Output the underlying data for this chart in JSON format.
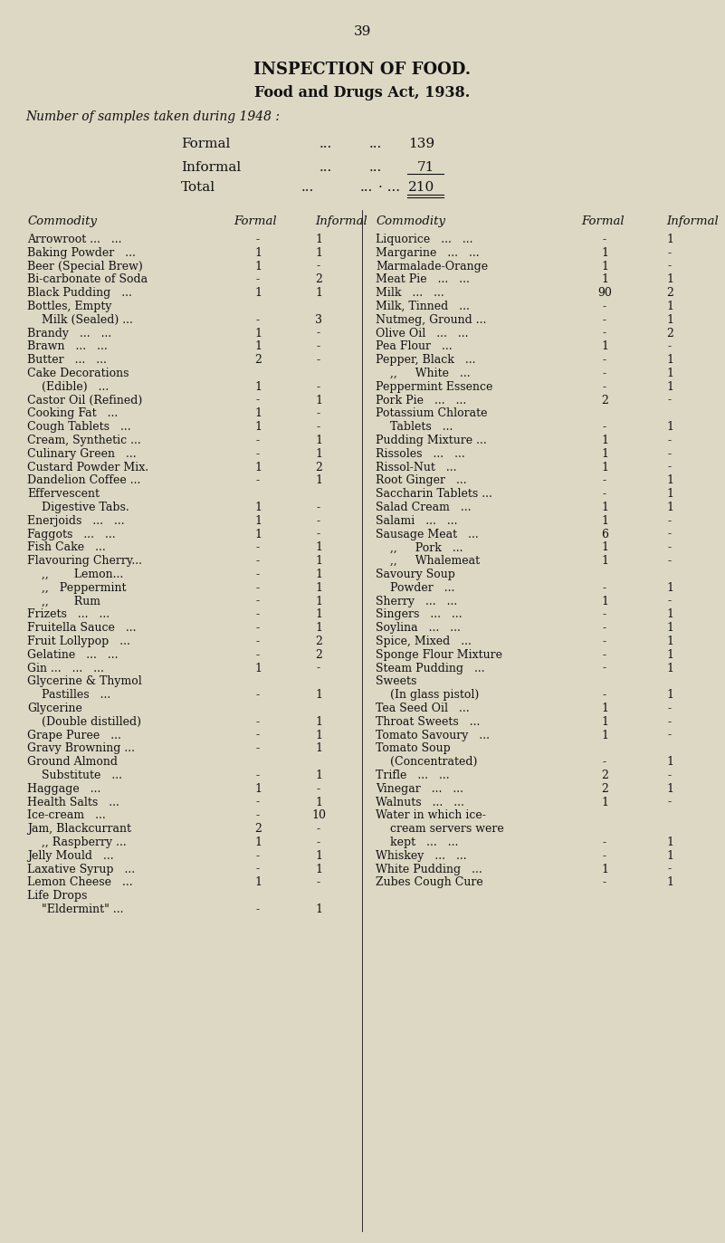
{
  "page_number": "39",
  "title1": "INSPECTION OF FOOD.",
  "title2": "Food and Drugs Act, 1938.",
  "subtitle": "Number of samples taken during 1948 :",
  "formal_label": "Formal",
  "informal_label": "Informal",
  "total_label": "Total",
  "formal_count": "139",
  "informal_count": "71",
  "total_count": "210",
  "bg_color": "#ddd8c4",
  "text_color": "#111111",
  "left_data": [
    [
      "Arrowroot ...   ...",
      "-",
      "1"
    ],
    [
      "Baking Powder   ...",
      "1",
      "1"
    ],
    [
      "Beer (Special Brew)",
      "1",
      "-"
    ],
    [
      "Bi-carbonate of Soda",
      "-",
      "2"
    ],
    [
      "Black Pudding   ...",
      "1",
      "1"
    ],
    [
      "Bottles, Empty",
      "",
      ""
    ],
    [
      "    Milk (Sealed) ...",
      "-",
      "3"
    ],
    [
      "Brandy   ...   ...",
      "1",
      "-"
    ],
    [
      "Brawn   ...   ...",
      "1",
      "-"
    ],
    [
      "Butter   ...   ...",
      "2",
      "-"
    ],
    [
      "Cake Decorations",
      "",
      ""
    ],
    [
      "    (Edible)   ...",
      "1",
      "-"
    ],
    [
      "Castor Oil (Refined)",
      "-",
      "1"
    ],
    [
      "Cooking Fat   ...",
      "1",
      "-"
    ],
    [
      "Cough Tablets   ...",
      "1",
      "-"
    ],
    [
      "Cream, Synthetic ...",
      "-",
      "1"
    ],
    [
      "Culinary Green   ...",
      "-",
      "1"
    ],
    [
      "Custard Powder Mix.",
      "1",
      "2"
    ],
    [
      "Dandelion Coffee ...",
      "-",
      "1"
    ],
    [
      "Effervescent",
      "",
      ""
    ],
    [
      "    Digestive Tabs.",
      "1",
      "-"
    ],
    [
      "Enerjoids   ...   ...",
      "1",
      "-"
    ],
    [
      "Faggots   ...   ...",
      "1",
      "-"
    ],
    [
      "Fish Cake   ...",
      "-",
      "1"
    ],
    [
      "Flavouring Cherry...",
      "-",
      "1"
    ],
    [
      "    ,,       Lemon...",
      "-",
      "1"
    ],
    [
      "    ,,   Peppermint",
      "-",
      "1"
    ],
    [
      "    ,,       Rum",
      "-",
      "1"
    ],
    [
      "Frizets   ...   ...",
      "-",
      "1"
    ],
    [
      "Fruitella Sauce   ...",
      "-",
      "1"
    ],
    [
      "Fruit Lollypop   ...",
      "-",
      "2"
    ],
    [
      "Gelatine   ...   ...",
      "-",
      "2"
    ],
    [
      "Gin ...   ...   ...",
      "1",
      "-"
    ],
    [
      "Glycerine & Thymol",
      "",
      ""
    ],
    [
      "    Pastilles   ...",
      "-",
      "1"
    ],
    [
      "Glycerine",
      "",
      ""
    ],
    [
      "    (Double distilled)",
      "-",
      "1"
    ],
    [
      "Grape Puree   ...",
      "-",
      "1"
    ],
    [
      "Gravy Browning ...",
      "-",
      "1"
    ],
    [
      "Ground Almond",
      "",
      ""
    ],
    [
      "    Substitute   ...",
      "-",
      "1"
    ],
    [
      "Haggage   ...",
      "1",
      "-"
    ],
    [
      "Health Salts   ...",
      "-",
      "1"
    ],
    [
      "Ice-cream   ...",
      "-",
      "10"
    ],
    [
      "Jam, Blackcurrant",
      "2",
      "-"
    ],
    [
      "    ,, Raspberry ...",
      "1",
      "-"
    ],
    [
      "Jelly Mould   ...",
      "-",
      "1"
    ],
    [
      "Laxative Syrup   ...",
      "-",
      "1"
    ],
    [
      "Lemon Cheese   ...",
      "1",
      "-"
    ],
    [
      "Life Drops",
      "",
      ""
    ],
    [
      "    \"Eldermint\" ...",
      "-",
      "1"
    ]
  ],
  "right_data": [
    [
      "Liquorice   ...   ...",
      "-",
      "1"
    ],
    [
      "Margarine   ...   ...",
      "1",
      "-"
    ],
    [
      "Marmalade-Orange",
      "1",
      "-"
    ],
    [
      "Meat Pie   ...   ...",
      "1",
      "1"
    ],
    [
      "Milk   ...   ...",
      "90",
      "2"
    ],
    [
      "Milk, Tinned   ...",
      "-",
      "1"
    ],
    [
      "Nutmeg, Ground ...",
      "-",
      "1"
    ],
    [
      "Olive Oil   ...   ...",
      "-",
      "2"
    ],
    [
      "Pea Flour   ...",
      "1",
      "-"
    ],
    [
      "Pepper, Black   ...",
      "-",
      "1"
    ],
    [
      "    ,,     White   ...",
      "-",
      "1"
    ],
    [
      "Peppermint Essence",
      "-",
      "1"
    ],
    [
      "Pork Pie   ...   ...",
      "2",
      "-"
    ],
    [
      "Potassium Chlorate",
      "",
      ""
    ],
    [
      "    Tablets   ...",
      "-",
      "1"
    ],
    [
      "Pudding Mixture ...",
      "1",
      "-"
    ],
    [
      "Rissoles   ...   ...",
      "1",
      "-"
    ],
    [
      "Rissol-Nut   ...",
      "1",
      "-"
    ],
    [
      "Root Ginger   ...",
      "-",
      "1"
    ],
    [
      "Saccharin Tablets ...",
      "-",
      "1"
    ],
    [
      "Salad Cream   ...",
      "1",
      "1"
    ],
    [
      "Salami   ...   ...",
      "1",
      "-"
    ],
    [
      "Sausage Meat   ...",
      "6",
      "-"
    ],
    [
      "    ,,     Pork   ...",
      "1",
      "-"
    ],
    [
      "    ,,     Whalemeat",
      "1",
      "-"
    ],
    [
      "Savoury Soup",
      "",
      ""
    ],
    [
      "    Powder   ...",
      "-",
      "1"
    ],
    [
      "Sherry   ...   ...",
      "1",
      "-"
    ],
    [
      "Singers   ...   ...",
      "-",
      "1"
    ],
    [
      "Soylina   ...   ...",
      "-",
      "1"
    ],
    [
      "Spice, Mixed   ...",
      "-",
      "1"
    ],
    [
      "Sponge Flour Mixture",
      "-",
      "1"
    ],
    [
      "Steam Pudding   ...",
      "-",
      "1"
    ],
    [
      "Sweets",
      "",
      ""
    ],
    [
      "    (In glass pistol)",
      "-",
      "1"
    ],
    [
      "Tea Seed Oil   ...",
      "1",
      "-"
    ],
    [
      "Throat Sweets   ...",
      "1",
      "-"
    ],
    [
      "Tomato Savoury   ...",
      "1",
      "-"
    ],
    [
      "Tomato Soup",
      "",
      ""
    ],
    [
      "    (Concentrated)",
      "-",
      "1"
    ],
    [
      "Trifle   ...   ...",
      "2",
      "-"
    ],
    [
      "Vinegar   ...   ...",
      "2",
      "1"
    ],
    [
      "Walnuts   ...   ...",
      "1",
      "-"
    ],
    [
      "Water in which ice-",
      "",
      ""
    ],
    [
      "    cream servers were",
      "",
      ""
    ],
    [
      "    kept   ...   ...",
      "-",
      "1"
    ],
    [
      "Whiskey   ...   ...",
      "-",
      "1"
    ],
    [
      "White Pudding   ...",
      "1",
      "-"
    ],
    [
      "Zubes Cough Cure",
      "-",
      "1"
    ]
  ]
}
